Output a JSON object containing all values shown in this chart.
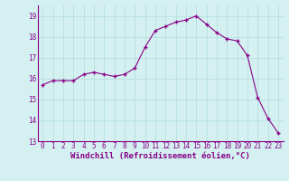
{
  "x": [
    0,
    1,
    2,
    3,
    4,
    5,
    6,
    7,
    8,
    9,
    10,
    11,
    12,
    13,
    14,
    15,
    16,
    17,
    18,
    19,
    20,
    21,
    22,
    23
  ],
  "y": [
    15.7,
    15.9,
    15.9,
    15.9,
    16.2,
    16.3,
    16.2,
    16.1,
    16.2,
    16.5,
    17.5,
    18.3,
    18.5,
    18.7,
    18.8,
    19.0,
    18.6,
    18.2,
    17.9,
    17.8,
    17.1,
    15.1,
    14.1,
    13.4
  ],
  "line_color": "#880088",
  "marker": "+",
  "marker_color": "#880088",
  "bg_color": "#d4f0f0",
  "grid_color": "#b0dede",
  "axis_color": "#880088",
  "xlabel": "Windchill (Refroidissement éolien,°C)",
  "xlabel_color": "#880088",
  "xlabel_fontsize": 6.5,
  "tick_color": "#880088",
  "tick_fontsize": 5.5,
  "xlim": [
    -0.5,
    23.5
  ],
  "ylim": [
    13.0,
    19.5
  ],
  "yticks": [
    13,
    14,
    15,
    16,
    17,
    18,
    19
  ],
  "xticks": [
    0,
    1,
    2,
    3,
    4,
    5,
    6,
    7,
    8,
    9,
    10,
    11,
    12,
    13,
    14,
    15,
    16,
    17,
    18,
    19,
    20,
    21,
    22,
    23
  ]
}
